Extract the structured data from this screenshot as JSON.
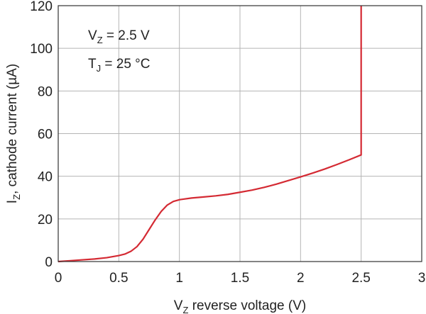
{
  "chart_data": {
    "type": "line",
    "x_axis": {
      "label_main": "V",
      "label_sub": "Z",
      "label_rest": " reverse voltage (V)",
      "range": [
        0,
        3
      ],
      "ticks": [
        0,
        0.5,
        1,
        1.5,
        2,
        2.5,
        3
      ],
      "tick_labels": [
        "0",
        "0.5",
        "1",
        "1.5",
        "2",
        "2.5",
        "3"
      ]
    },
    "y_axis": {
      "label_main": "I",
      "label_sub": "Z",
      "label_rest": ", cathode current (µA)",
      "range": [
        0,
        120
      ],
      "ticks": [
        0,
        20,
        40,
        60,
        80,
        100,
        120
      ],
      "tick_labels": [
        "0",
        "20",
        "40",
        "60",
        "80",
        "100",
        "120"
      ]
    },
    "grid": true,
    "annotations": [
      {
        "main": "V",
        "sub": "Z",
        "rest": " = 2.5 V"
      },
      {
        "main": "T",
        "sub": "J",
        "rest": " = 25 °C"
      }
    ],
    "series": [
      {
        "color": "#d42a33",
        "x": [
          0,
          0.1,
          0.2,
          0.3,
          0.4,
          0.5,
          0.55,
          0.6,
          0.65,
          0.7,
          0.75,
          0.8,
          0.85,
          0.9,
          0.95,
          1.0,
          1.1,
          1.2,
          1.3,
          1.4,
          1.5,
          1.6,
          1.7,
          1.8,
          1.9,
          2.0,
          2.1,
          2.2,
          2.3,
          2.4,
          2.5,
          2.5
        ],
        "y": [
          0,
          0.4,
          0.8,
          1.2,
          1.8,
          2.8,
          3.5,
          4.8,
          7.0,
          10.5,
          15,
          19.5,
          23.5,
          26.5,
          28.2,
          29.0,
          29.8,
          30.3,
          30.8,
          31.5,
          32.5,
          33.5,
          34.8,
          36.3,
          38.0,
          39.7,
          41.5,
          43.4,
          45.5,
          47.7,
          50,
          120
        ]
      }
    ]
  }
}
